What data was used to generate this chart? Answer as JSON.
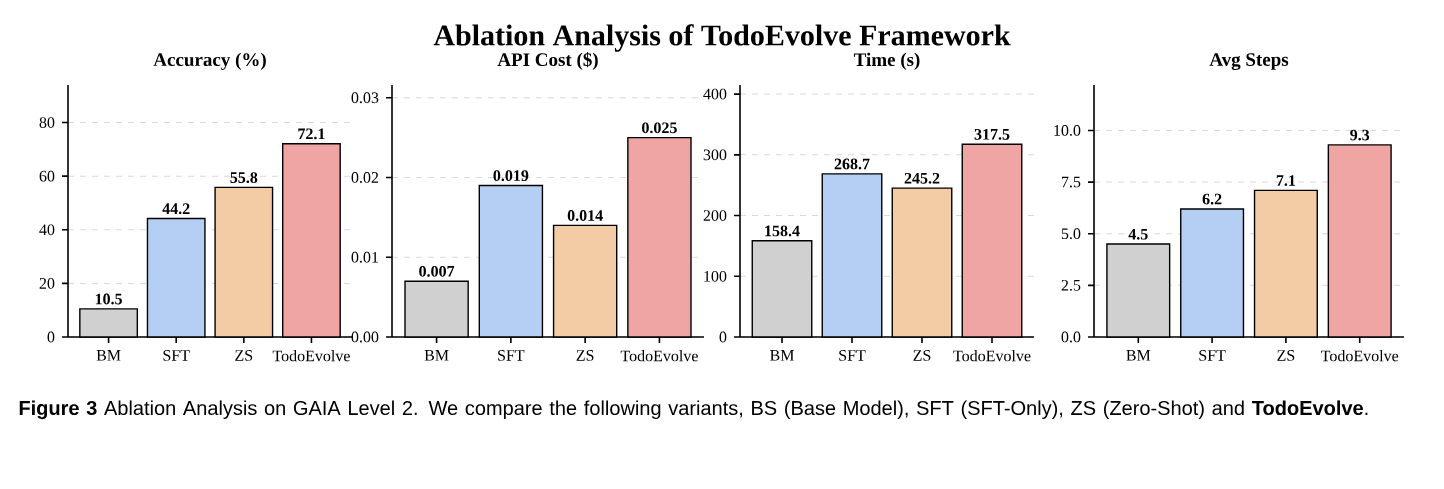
{
  "chart_data": [
    {
      "type": "bar",
      "title": "Accuracy (%)",
      "categories": [
        "BM",
        "SFT",
        "ZS",
        "TodoEvolve"
      ],
      "values": [
        10.5,
        44.2,
        55.8,
        72.1
      ],
      "colors": [
        "#d0d0d0",
        "#b5cef3",
        "#f3cba5",
        "#f0a5a5"
      ],
      "ylim": [
        0,
        94
      ],
      "yticks": [
        0,
        20,
        40,
        60,
        80
      ],
      "grid": "y",
      "data_labels": true,
      "annotations": [
        "Ablation Analysis of TodoEvolve Framework",
        "**Figure 3**  Ablation Analysis on GAIA Level 2. We compare the following variants, BS (Base Model), SFT (SFT-Only), ZS (Zero-Shot) and **TodoEvolve**."
      ]
    },
    {
      "type": "bar",
      "title": "API Cost ($)",
      "categories": [
        "BM",
        "SFT",
        "ZS",
        "TodoEvolve"
      ],
      "values": [
        0.007,
        0.019,
        0.014,
        0.025
      ],
      "colors": [
        "#d0d0d0",
        "#b5cef3",
        "#f3cba5",
        "#f0a5a5"
      ],
      "ylim": [
        0,
        0.0316
      ],
      "yticks": [
        {
          "value": 0,
          "label": "0.00"
        },
        0.01,
        0.02,
        0.03
      ],
      "grid": "y",
      "data_labels": true
    },
    {
      "type": "bar",
      "title": "Time (s)",
      "categories": [
        "BM",
        "SFT",
        "ZS",
        "TodoEvolve"
      ],
      "values": [
        158.4,
        268.7,
        245.2,
        317.5
      ],
      "colors": [
        "#d0d0d0",
        "#b5cef3",
        "#f3cba5",
        "#f0a5a5"
      ],
      "ylim": [
        0,
        415
      ],
      "yticks": [
        0,
        100,
        200,
        300,
        400
      ],
      "grid": "y",
      "data_labels": true
    },
    {
      "type": "bar",
      "title": "Avg Steps",
      "categories": [
        "BM",
        "SFT",
        "ZS",
        "TodoEvolve"
      ],
      "values": [
        4.5,
        6.2,
        7.1,
        9.3
      ],
      "colors": [
        "#d0d0d0",
        "#b5cef3",
        "#f3cba5",
        "#f0a5a5"
      ],
      "ylim": [
        0,
        12.2
      ],
      "yticks": [
        {
          "value": 0,
          "label": "0.0"
        },
        2.5,
        {
          "value": 5,
          "label": "5.0"
        },
        7.5,
        {
          "value": 10,
          "label": "10.0"
        }
      ],
      "grid": "y",
      "data_labels": true
    }
  ]
}
